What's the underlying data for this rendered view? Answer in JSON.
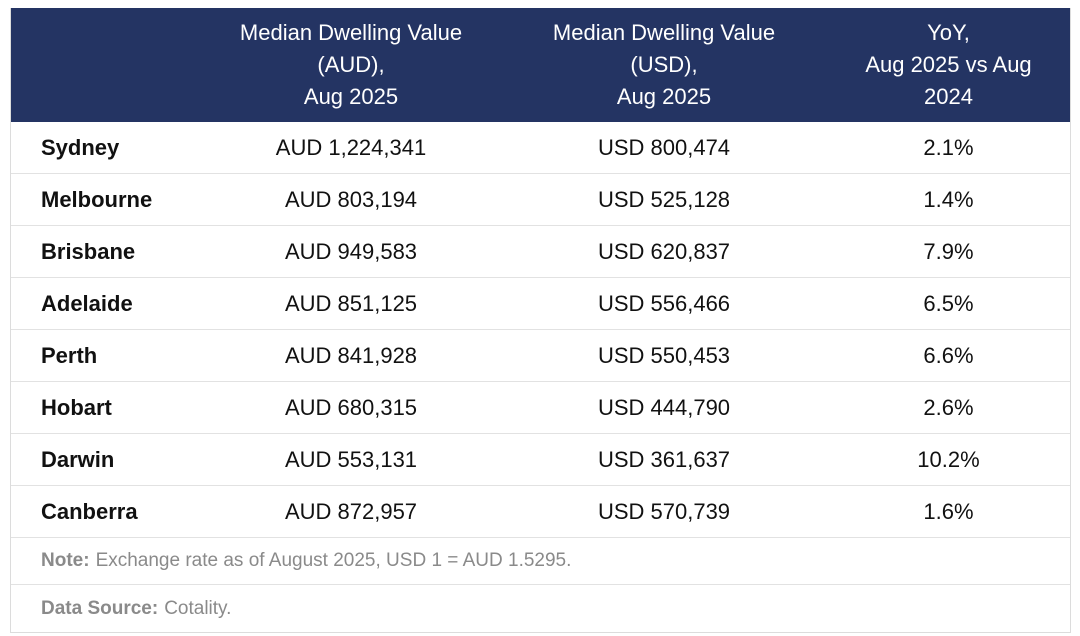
{
  "table": {
    "headers": [
      [
        "Median Dwelling Value",
        "(AUD),",
        "Aug 2025"
      ],
      [
        "Median Dwelling Value",
        "(USD),",
        "Aug 2025"
      ],
      [
        "YoY,",
        "Aug 2025 vs Aug",
        "2024"
      ]
    ],
    "rows": [
      [
        "Sydney",
        "AUD 1,224,341",
        "USD 800,474",
        "2.1%"
      ],
      [
        "Melbourne",
        "AUD 803,194",
        "USD 525,128",
        "1.4%"
      ],
      [
        "Brisbane",
        "AUD 949,583",
        "USD 620,837",
        "7.9%"
      ],
      [
        "Adelaide",
        "AUD 851,125",
        "USD 556,466",
        "6.5%"
      ],
      [
        "Perth",
        "AUD 841,928",
        "USD 550,453",
        "6.6%"
      ],
      [
        "Hobart",
        "AUD 680,315",
        "USD 444,790",
        "2.6%"
      ],
      [
        "Darwin",
        "AUD 553,131",
        "USD 361,637",
        "10.2%"
      ],
      [
        "Canberra",
        "AUD 872,957",
        "USD 570,739",
        "1.6%"
      ]
    ]
  },
  "notes": [
    {
      "label": "Note:",
      "text": "Exchange rate as of August 2025, USD 1 = AUD 1.5295."
    },
    {
      "label": "Data Source:",
      "text": "Cotality."
    }
  ]
}
